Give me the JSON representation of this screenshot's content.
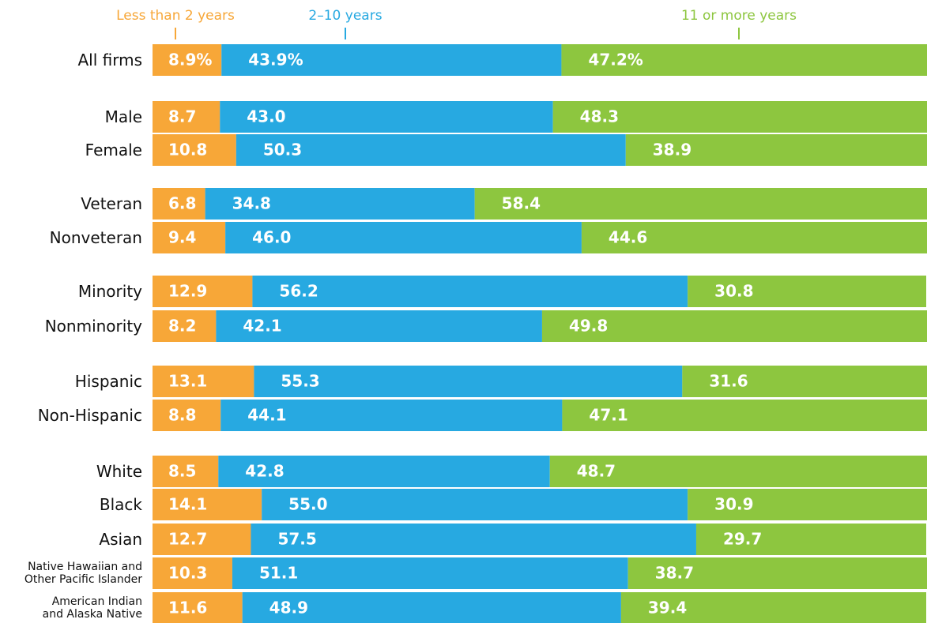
{
  "chart_data": {
    "type": "stacked-bar",
    "orientation": "horizontal",
    "categories": [
      "All firms",
      "Male",
      "Female",
      "Veteran",
      "Nonveteran",
      "Minority",
      "Nonminority",
      "Hispanic",
      "Non-Hispanic",
      "White",
      "Black",
      "Asian",
      "Native Hawaiian and\nOther Pacific Islander",
      "American Indian\nand Alaska Native"
    ],
    "xlim": [
      0,
      100
    ],
    "series": [
      {
        "name": "Less than 2 years",
        "color": "#f7a738",
        "values": [
          8.9,
          8.7,
          10.8,
          6.8,
          9.4,
          12.9,
          8.2,
          13.1,
          8.8,
          8.5,
          14.1,
          12.7,
          10.3,
          11.6
        ],
        "value_labels": [
          "8.9%",
          "8.7",
          "10.8",
          "6.8",
          "9.4",
          "12.9",
          "8.2",
          "13.1",
          "8.8",
          "8.5",
          "14.1",
          "12.7",
          "10.3",
          "11.6"
        ]
      },
      {
        "name": "2–10 years",
        "color": "#27a9e1",
        "values": [
          43.9,
          43.0,
          50.3,
          34.8,
          46.0,
          56.2,
          42.1,
          55.3,
          44.1,
          42.8,
          55.0,
          57.5,
          51.1,
          48.9
        ],
        "value_labels": [
          "43.9%",
          "43.0",
          "50.3",
          "34.8",
          "46.0",
          "56.2",
          "42.1",
          "55.3",
          "44.1",
          "42.8",
          "55.0",
          "57.5",
          "51.1",
          "48.9"
        ]
      },
      {
        "name": "11 or more years",
        "color": "#8dc63f",
        "values": [
          47.2,
          48.3,
          38.9,
          58.4,
          44.6,
          30.8,
          49.8,
          31.6,
          47.1,
          48.7,
          30.9,
          29.7,
          38.7,
          39.4
        ],
        "value_labels": [
          "47.2%",
          "48.3",
          "38.9",
          "58.4",
          "44.6",
          "30.8",
          "49.8",
          "31.6",
          "47.1",
          "48.7",
          "30.9",
          "29.7",
          "38.7",
          "39.4"
        ]
      }
    ]
  }
}
